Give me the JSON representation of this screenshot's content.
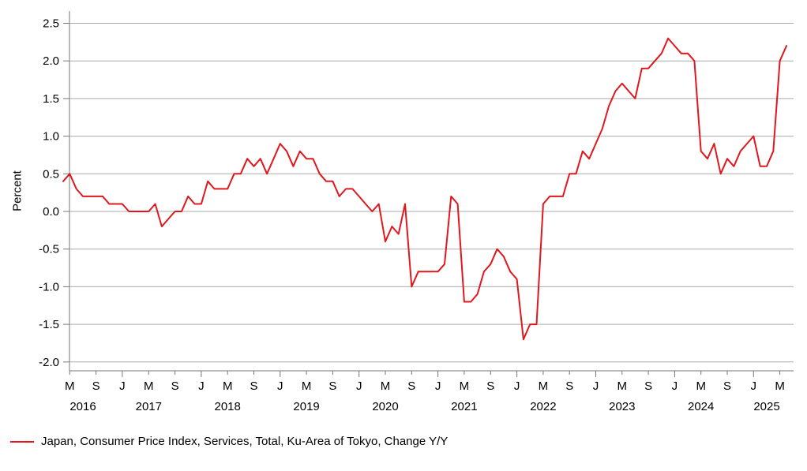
{
  "chart_data": {
    "type": "line",
    "title": "",
    "ylabel": "Percent",
    "ylim": [
      -2.0,
      2.5
    ],
    "grid": "horizontal",
    "legend_position": "bottom-left",
    "colors": {
      "grid": "#ababab",
      "axis": "#777777",
      "text": "#000000"
    },
    "y_axis": {
      "ticks": [
        {
          "value": 2.5,
          "label": "2.5"
        },
        {
          "value": 2.0,
          "label": "2.0"
        },
        {
          "value": 1.5,
          "label": "1.5"
        },
        {
          "value": 1.0,
          "label": "1.0"
        },
        {
          "value": 0.5,
          "label": "0.5"
        },
        {
          "value": 0.0,
          "label": "0.0"
        },
        {
          "value": -0.5,
          "label": "-0.5"
        },
        {
          "value": -1.0,
          "label": "-1.0"
        },
        {
          "value": -1.5,
          "label": "-1.5"
        },
        {
          "value": -2.0,
          "label": "-2.0"
        }
      ]
    },
    "x_axis": {
      "month_ticks": [
        {
          "i": 1,
          "label": "M"
        },
        {
          "i": 5,
          "label": "S"
        },
        {
          "i": 9,
          "label": "J"
        },
        {
          "i": 13,
          "label": "M"
        },
        {
          "i": 17,
          "label": "S"
        },
        {
          "i": 21,
          "label": "J"
        },
        {
          "i": 25,
          "label": "M"
        },
        {
          "i": 29,
          "label": "S"
        },
        {
          "i": 33,
          "label": "J"
        },
        {
          "i": 37,
          "label": "M"
        },
        {
          "i": 41,
          "label": "S"
        },
        {
          "i": 45,
          "label": "J"
        },
        {
          "i": 49,
          "label": "M"
        },
        {
          "i": 53,
          "label": "S"
        },
        {
          "i": 57,
          "label": "J"
        },
        {
          "i": 61,
          "label": "M"
        },
        {
          "i": 65,
          "label": "S"
        },
        {
          "i": 69,
          "label": "J"
        },
        {
          "i": 73,
          "label": "M"
        },
        {
          "i": 77,
          "label": "S"
        },
        {
          "i": 81,
          "label": "J"
        },
        {
          "i": 85,
          "label": "M"
        },
        {
          "i": 89,
          "label": "S"
        },
        {
          "i": 93,
          "label": "J"
        },
        {
          "i": 97,
          "label": "M"
        },
        {
          "i": 101,
          "label": "S"
        },
        {
          "i": 105,
          "label": "J"
        },
        {
          "i": 109,
          "label": "M"
        }
      ],
      "year_labels": [
        {
          "i": 3,
          "label": "2016"
        },
        {
          "i": 13,
          "label": "2017"
        },
        {
          "i": 25,
          "label": "2018"
        },
        {
          "i": 37,
          "label": "2019"
        },
        {
          "i": 49,
          "label": "2020"
        },
        {
          "i": 61,
          "label": "2021"
        },
        {
          "i": 73,
          "label": "2022"
        },
        {
          "i": 85,
          "label": "2023"
        },
        {
          "i": 97,
          "label": "2024"
        },
        {
          "i": 107,
          "label": "2025"
        }
      ]
    },
    "series": [
      {
        "name": "Japan, Consumer Price Index, Services, Total, Ku-Area of Tokyo, Change Y/Y",
        "color": "#e0181e",
        "frequency": "monthly",
        "start_month": "2016-04",
        "end_month": "2025-06",
        "values": [
          0.4,
          0.5,
          0.3,
          0.2,
          0.2,
          0.2,
          0.2,
          0.1,
          0.1,
          0.1,
          0.0,
          0.0,
          0.0,
          0.0,
          0.1,
          -0.2,
          -0.1,
          0.0,
          0.0,
          0.2,
          0.1,
          0.1,
          0.4,
          0.3,
          0.3,
          0.3,
          0.5,
          0.5,
          0.7,
          0.6,
          0.7,
          0.5,
          0.7,
          0.9,
          0.8,
          0.6,
          0.8,
          0.7,
          0.7,
          0.5,
          0.4,
          0.4,
          0.2,
          0.3,
          0.3,
          0.2,
          0.1,
          0.0,
          0.1,
          -0.4,
          -0.2,
          -0.3,
          0.1,
          -1.0,
          -0.8,
          -0.8,
          -0.8,
          -0.8,
          -0.7,
          0.2,
          0.1,
          -1.2,
          -1.2,
          -1.1,
          -0.8,
          -0.7,
          -0.5,
          -0.6,
          -0.8,
          -0.9,
          -1.7,
          -1.5,
          -1.5,
          0.1,
          0.2,
          0.2,
          0.2,
          0.5,
          0.5,
          0.8,
          0.7,
          0.9,
          1.1,
          1.4,
          1.6,
          1.7,
          1.6,
          1.5,
          1.9,
          1.9,
          2.0,
          2.1,
          2.3,
          2.2,
          2.1,
          2.1,
          2.0,
          0.8,
          0.7,
          0.9,
          0.5,
          0.7,
          0.6,
          0.8,
          0.9,
          1.0,
          0.6,
          0.6,
          0.8,
          2.0,
          2.2
        ]
      }
    ]
  }
}
